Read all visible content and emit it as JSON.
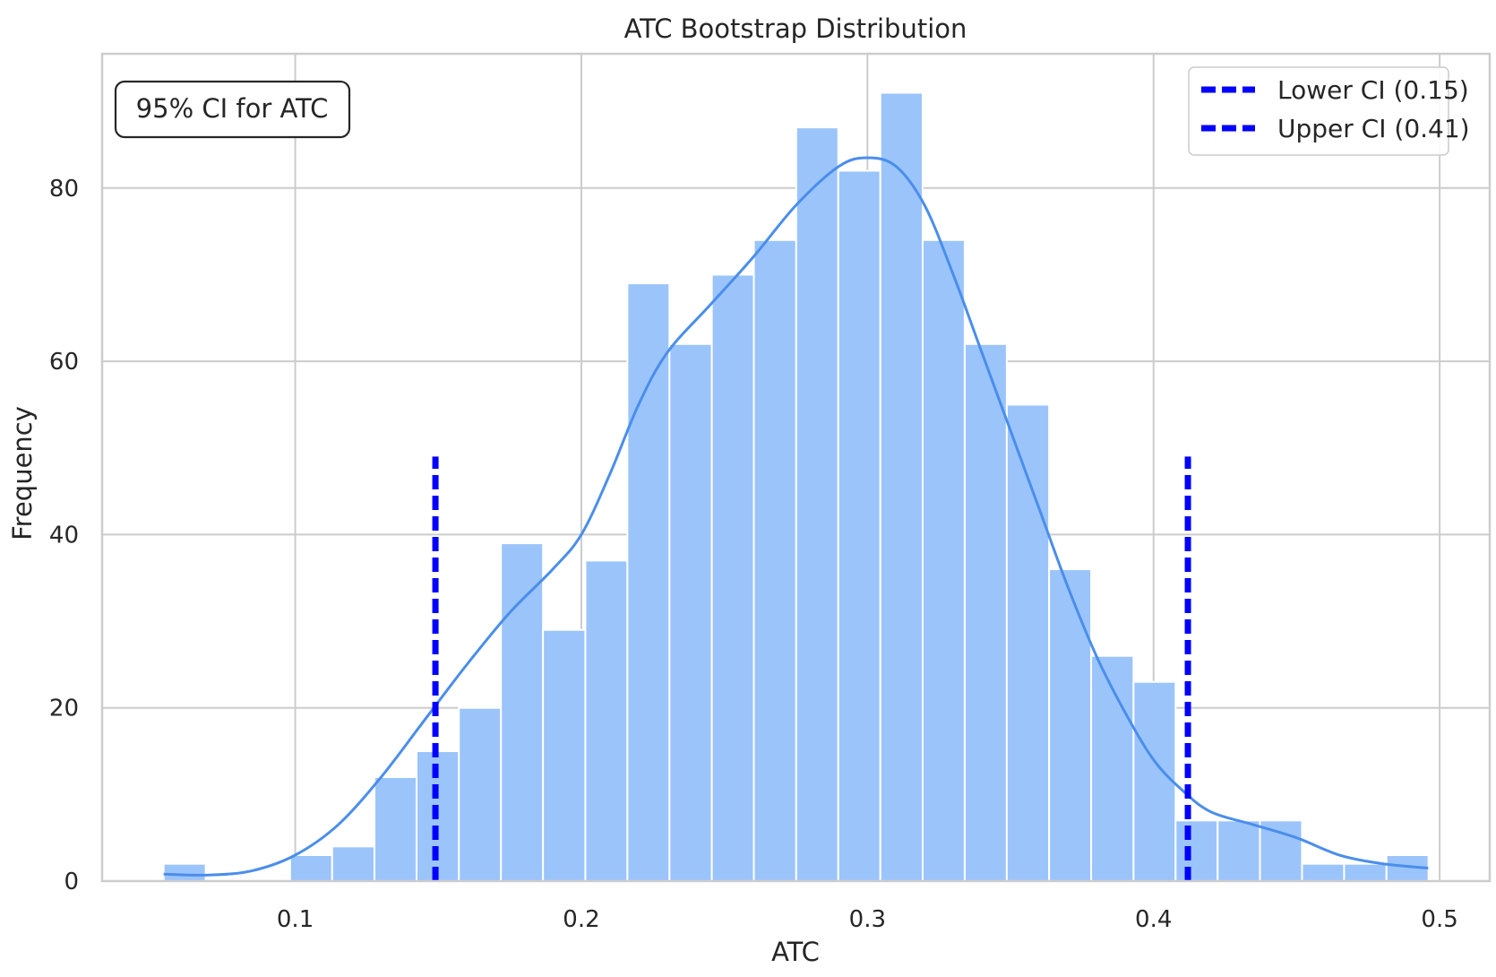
{
  "chart_data": {
    "type": "histogram",
    "title": "ATC Bootstrap Distribution",
    "xlabel": "ATC",
    "ylabel": "Frequency",
    "xlim": [
      0.0325,
      0.5175
    ],
    "ylim": [
      0,
      95.5
    ],
    "xticks": [
      0.1,
      0.2,
      0.3,
      0.4,
      0.5
    ],
    "xtick_labels": [
      "0.1",
      "0.2",
      "0.3",
      "0.4",
      "0.5"
    ],
    "yticks": [
      0,
      20,
      40,
      60,
      80
    ],
    "ytick_labels": [
      "0",
      "20",
      "40",
      "60",
      "80"
    ],
    "grid": true,
    "bar_color": "#9bc4fa",
    "kde_color": "#4a8eeb",
    "bin_edges": [
      0.054,
      0.0687,
      0.0835,
      0.0982,
      0.1129,
      0.1277,
      0.1424,
      0.1572,
      0.1719,
      0.1866,
      0.2014,
      0.2161,
      0.2308,
      0.2456,
      0.2603,
      0.2751,
      0.2898,
      0.3045,
      0.3193,
      0.334,
      0.3487,
      0.3635,
      0.3782,
      0.393,
      0.4077,
      0.4224,
      0.4372,
      0.4519,
      0.4666,
      0.4814,
      0.4961
    ],
    "counts": [
      2,
      0,
      0,
      3,
      4,
      12,
      15,
      20,
      39,
      29,
      37,
      69,
      62,
      70,
      74,
      87,
      82,
      91,
      74,
      62,
      55,
      36,
      26,
      23,
      7,
      7,
      7,
      2,
      2,
      3
    ],
    "kde": {
      "x": [
        0.054,
        0.07,
        0.085,
        0.1,
        0.115,
        0.13,
        0.145,
        0.16,
        0.175,
        0.19,
        0.2,
        0.21,
        0.22,
        0.23,
        0.245,
        0.26,
        0.275,
        0.29,
        0.3,
        0.31,
        0.32,
        0.33,
        0.34,
        0.35,
        0.36,
        0.37,
        0.38,
        0.39,
        0.4,
        0.41,
        0.42,
        0.435,
        0.45,
        0.465,
        0.48,
        0.496
      ],
      "y": [
        0.8,
        0.7,
        1.2,
        3,
        6.5,
        12,
        18.5,
        25,
        31,
        36,
        40,
        47,
        55,
        61,
        66.5,
        72,
        78,
        82.5,
        83.5,
        82.5,
        78,
        70,
        61,
        52,
        43,
        34,
        26,
        19.5,
        14,
        10.5,
        8,
        6.5,
        5,
        3,
        2,
        1.5
      ]
    },
    "ci_lines": [
      {
        "name": "Lower CI (0.15)",
        "x": 0.149,
        "ymax": 49,
        "color": "#0000ff"
      },
      {
        "name": "Upper CI (0.41)",
        "x": 0.412,
        "ymax": 49,
        "color": "#0000ff"
      }
    ],
    "legend_position": "top-right",
    "annotation": {
      "text": "95% CI for ATC",
      "position": "top-left"
    }
  }
}
